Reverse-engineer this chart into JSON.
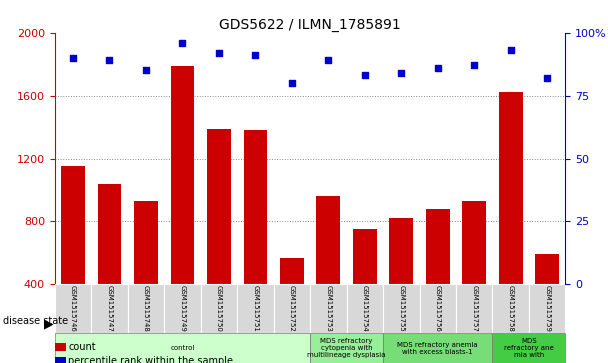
{
  "title": "GDS5622 / ILMN_1785891",
  "samples": [
    "GSM1515746",
    "GSM1515747",
    "GSM1515748",
    "GSM1515749",
    "GSM1515750",
    "GSM1515751",
    "GSM1515752",
    "GSM1515753",
    "GSM1515754",
    "GSM1515755",
    "GSM1515756",
    "GSM1515757",
    "GSM1515758",
    "GSM1515759"
  ],
  "counts": [
    1150,
    1040,
    930,
    1790,
    1390,
    1380,
    570,
    960,
    750,
    820,
    880,
    930,
    1620,
    590
  ],
  "percentile_ranks": [
    90,
    89,
    85,
    96,
    92,
    91,
    80,
    89,
    83,
    84,
    86,
    87,
    93,
    82
  ],
  "ylim_left": [
    400,
    2000
  ],
  "ylim_right": [
    0,
    100
  ],
  "yticks_left": [
    400,
    800,
    1200,
    1600,
    2000
  ],
  "yticks_right": [
    0,
    25,
    50,
    75,
    100
  ],
  "bar_color": "#cc0000",
  "scatter_color": "#0000cc",
  "disease_groups": [
    {
      "label": "control",
      "start": 0,
      "end": 7,
      "color": "#ccffcc"
    },
    {
      "label": "MDS refractory\ncytopenia with\nmultilineage dysplasia",
      "start": 7,
      "end": 9,
      "color": "#99ee99"
    },
    {
      "label": "MDS refractory anemia\nwith excess blasts-1",
      "start": 9,
      "end": 12,
      "color": "#77dd77"
    },
    {
      "label": "MDS\nrefractory ane\nmia with",
      "start": 12,
      "end": 14,
      "color": "#44cc44"
    }
  ],
  "left_label_color": "#cc0000",
  "right_label_color": "#0000cc",
  "grid_color": "#888888",
  "sample_bg_color": "#d8d8d8",
  "legend_items": [
    {
      "color": "#cc0000",
      "label": "count"
    },
    {
      "color": "#0000cc",
      "label": "percentile rank within the sample"
    }
  ]
}
